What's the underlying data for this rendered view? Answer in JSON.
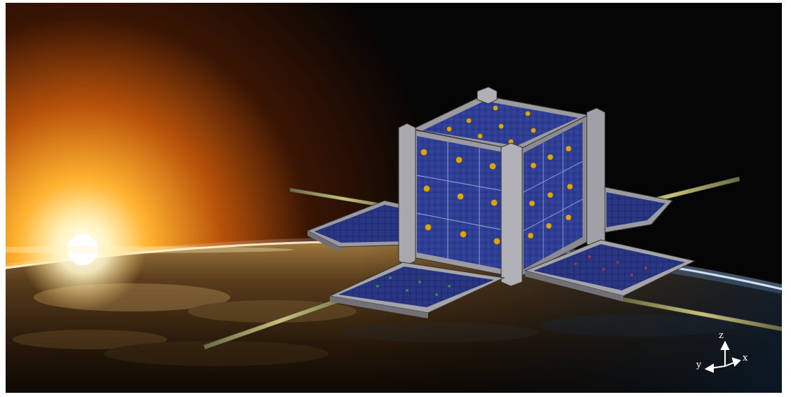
{
  "image": {
    "subject": "cubesat-in-orbit",
    "colors": {
      "sun": "#ffd27a",
      "space": "#050505",
      "earth_glow": "#9fd0ff",
      "panel_cell": "#2a3a8c",
      "frame": "#8e8e92",
      "gold_dot": "#d9a514"
    }
  },
  "axes": {
    "x_label": "x",
    "y_label": "y",
    "z_label": "z"
  }
}
